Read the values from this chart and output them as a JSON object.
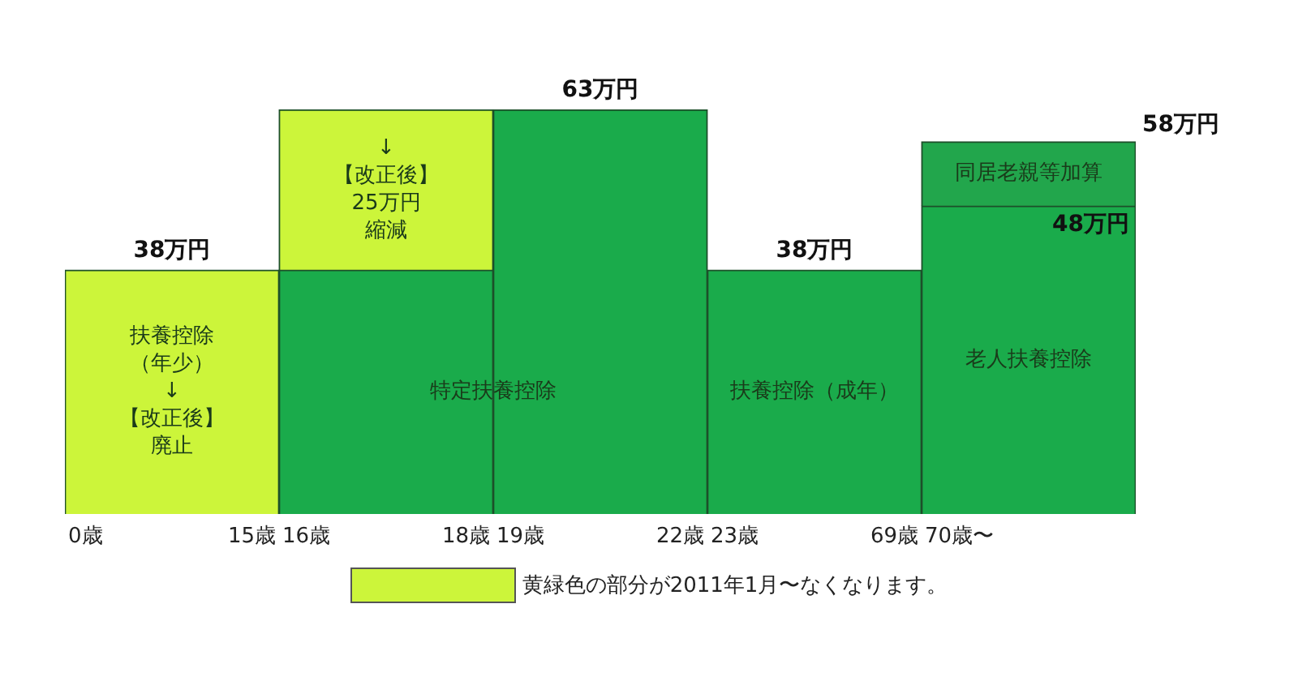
{
  "chart_data": {
    "type": "bar",
    "stacked": true,
    "categories": [
      null,
      null,
      null,
      null,
      null
    ],
    "series": [
      {
        "color": "#1aab4b",
        "values": [
          null,
          38,
          63,
          38,
          48
        ],
        "value_labels": [
          null,
          null,
          "63万円",
          "38万円",
          "48万円"
        ]
      },
      {
        "name": "黄緑色の部分が2011年1月〜なくなります。",
        "color": "#ccf53a",
        "values": [
          38,
          25,
          null,
          null,
          null
        ],
        "value_labels": [
          "38万円",
          "25万円縮減",
          null,
          null,
          null
        ]
      },
      {
        "color": "#22a64c",
        "values": [
          null,
          null,
          null,
          null,
          10
        ]
      }
    ],
    "totals": [
      null,
      null,
      null,
      null,
      "58万円"
    ],
    "annotations": [
      "扶養控除（年少）",
      "↓",
      "【改正後】",
      "廃止",
      "↓",
      "【改正後】",
      "特定扶養控除",
      "扶養控除（成年）",
      "老人扶養控除",
      "同居老親等加算",
      "0歳",
      "15歳",
      "16歳",
      "18歳",
      "19歳",
      "22歳",
      "23歳",
      "69歳",
      "70歳〜"
    ],
    "legend": "bottom"
  }
}
